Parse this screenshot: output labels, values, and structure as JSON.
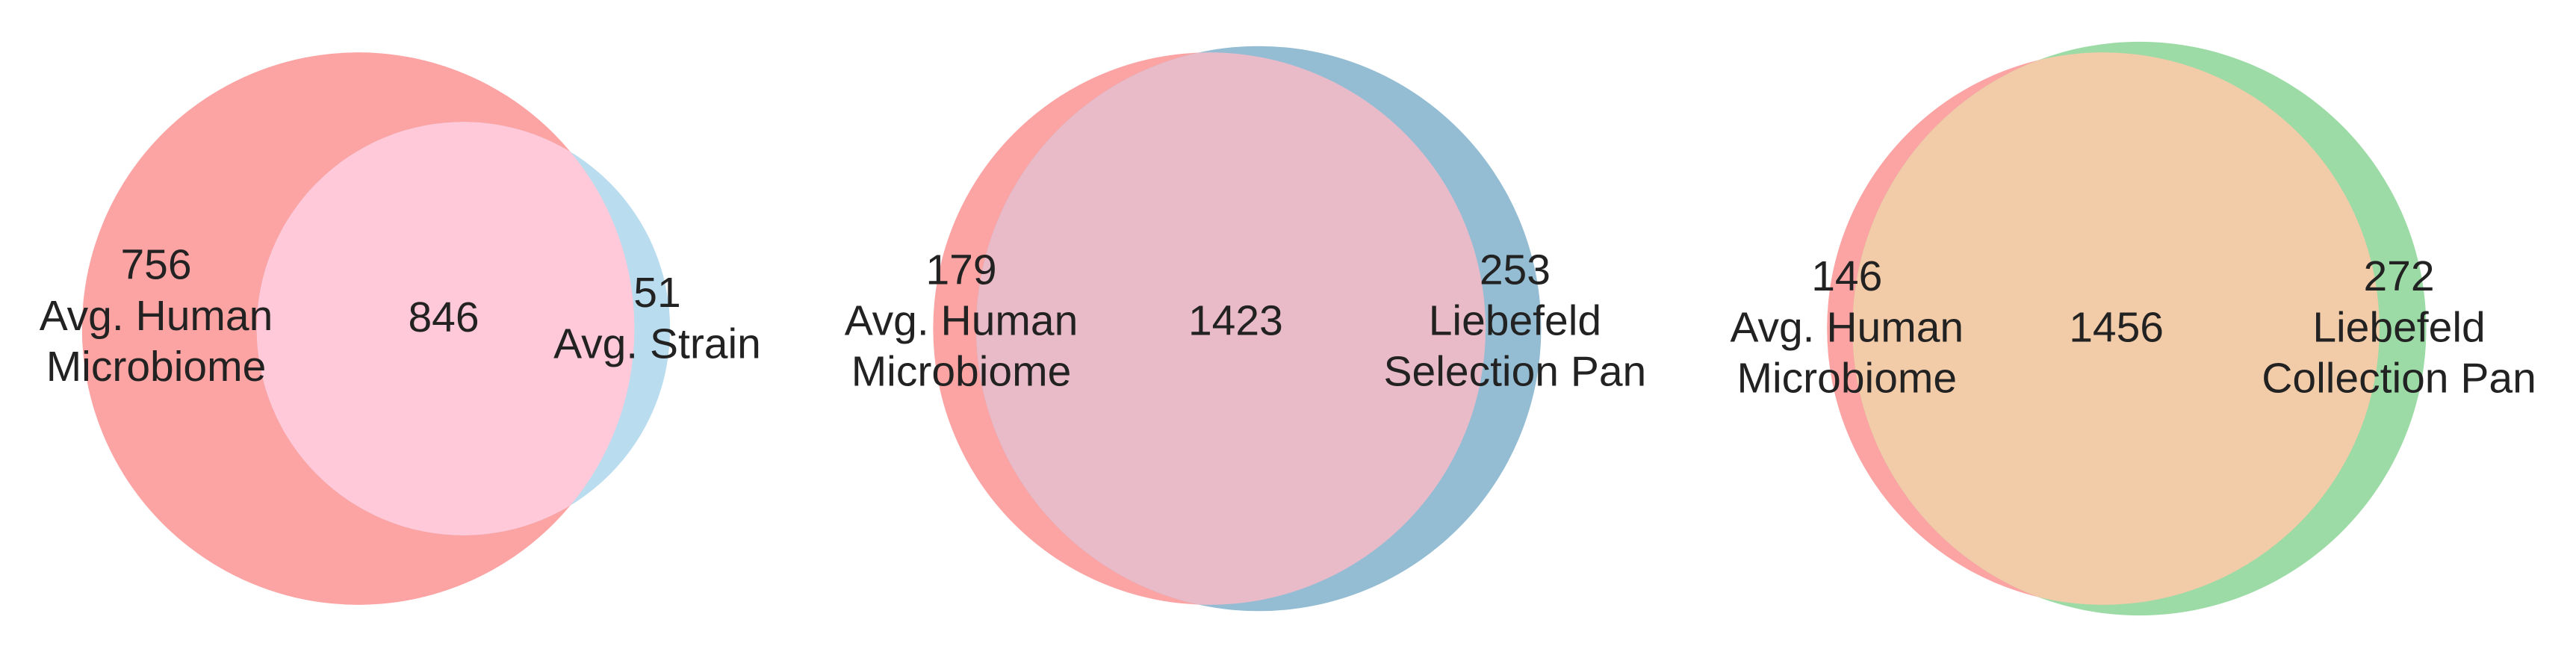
{
  "chart_data": [
    {
      "type": "venn",
      "sets": [
        {
          "name": [
            "Avg. Human",
            "Microbiome"
          ],
          "color": "#fca3a3"
        },
        {
          "name": [
            "Avg. Strain"
          ],
          "color": "#b9dcee"
        }
      ],
      "overlap_color": "#ffc9da",
      "values": [
        756,
        51,
        846
      ]
    },
    {
      "type": "venn",
      "sets": [
        {
          "name": [
            "Avg. Human",
            "Microbiome"
          ],
          "color": "#fca3a3"
        },
        {
          "name": [
            "Liebefeld",
            "Selection Pan"
          ],
          "color": "#94bdd4"
        }
      ],
      "overlap_color": "#e9bbc9",
      "values": [
        179,
        253,
        1423
      ]
    },
    {
      "type": "venn",
      "sets": [
        {
          "name": [
            "Avg. Human",
            "Microbiome"
          ],
          "color": "#fca3a3"
        },
        {
          "name": [
            "Liebefeld",
            "Collection Pan"
          ],
          "color": "#9cdba6"
        }
      ],
      "overlap_color": "#f2cba9",
      "values": [
        146,
        272,
        1456
      ]
    }
  ]
}
